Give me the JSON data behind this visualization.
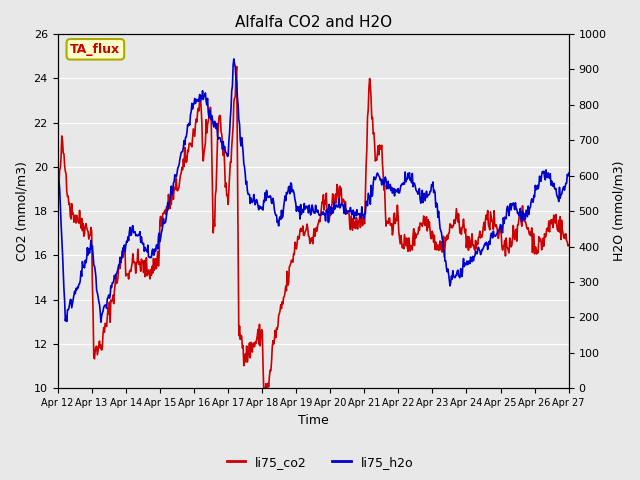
{
  "title": "Alfalfa CO2 and H2O",
  "xlabel": "Time",
  "ylabel_left": "CO2 (mmol/m3)",
  "ylabel_right": "H2O (mmol/m3)",
  "ylim_left": [
    10,
    26
  ],
  "ylim_right": [
    0,
    1000
  ],
  "yticks_left": [
    10,
    12,
    14,
    16,
    18,
    20,
    22,
    24,
    26
  ],
  "yticks_right": [
    0,
    100,
    200,
    300,
    400,
    500,
    600,
    700,
    800,
    900,
    1000
  ],
  "color_co2": "#cc0000",
  "color_h2o": "#0000cc",
  "legend_co2": "li75_co2",
  "legend_h2o": "li75_h2o",
  "annotation_text": "TA_flux",
  "annotation_bg": "#ffffcc",
  "annotation_border": "#aaaa00",
  "annotation_color": "#cc0000",
  "bg_color": "#e8e8e8",
  "n_days": 15,
  "n_per_day": 48,
  "xticklabels": [
    "Apr 12",
    "Apr 13",
    "Apr 14",
    "Apr 15",
    "Apr 16",
    "Apr 17",
    "Apr 18",
    "Apr 19",
    "Apr 20",
    "Apr 21",
    "Apr 22",
    "Apr 23",
    "Apr 24",
    "Apr 25",
    "Apr 26",
    "Apr 27"
  ],
  "xtick_positions": [
    0,
    1,
    2,
    3,
    4,
    5,
    6,
    7,
    8,
    9,
    10,
    11,
    12,
    13,
    14,
    15
  ],
  "linewidth": 1.2,
  "title_fontsize": 11,
  "axis_fontsize": 9,
  "tick_fontsize": 8,
  "xtick_fontsize": 7
}
